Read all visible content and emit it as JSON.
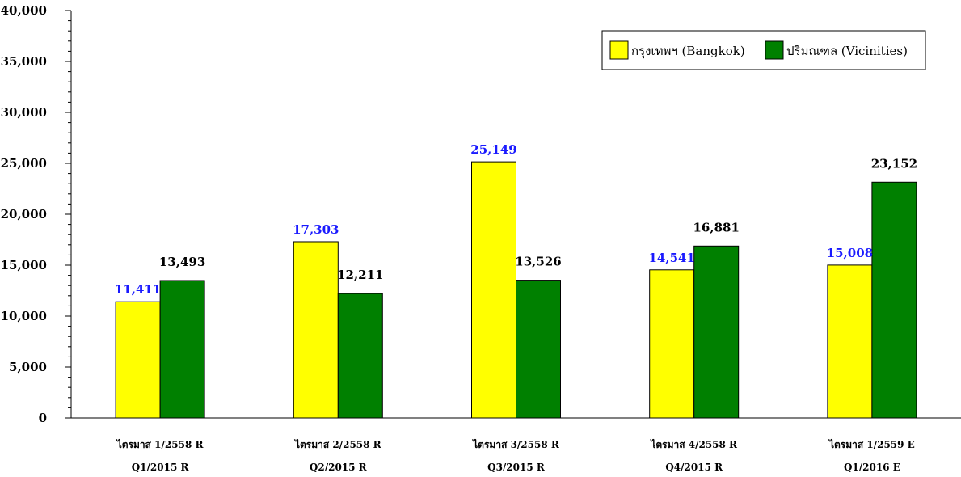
{
  "chart_data": {
    "type": "bar",
    "title": "",
    "xlabel": "",
    "ylabel": "",
    "ylim": [
      0,
      40000
    ],
    "yticks": [
      0,
      5000,
      10000,
      15000,
      20000,
      25000,
      30000,
      35000,
      40000
    ],
    "ytick_labels": [
      "0",
      "5,000",
      "10,000",
      "15,000",
      "20,000",
      "25,000",
      "30,000",
      "35,000",
      "40,000"
    ],
    "categories": [
      "ไตรมาส 1/2558 R",
      "ไตรมาส 2/2558 R",
      "ไตรมาส 3/2558 R",
      "ไตรมาส 4/2558 R",
      "ไตรมาส 1/2559 E"
    ],
    "categories_en": [
      "Q1/2015 R",
      "Q2/2015 R",
      "Q3/2015 R",
      "Q4/2015 R",
      "Q1/2016 E"
    ],
    "legend_position": "top-right",
    "grid": false,
    "series": [
      {
        "name": "กรุงเทพฯ (Bangkok)",
        "color": "#ffff00",
        "label_color": "#1a1aff",
        "values": [
          11411,
          17303,
          25149,
          14541,
          15008
        ],
        "labels": [
          "11,411",
          "17,303",
          "25,149",
          "14,541",
          "15,008"
        ]
      },
      {
        "name": "ปริมณฑล (Vicinities)",
        "color": "#008000",
        "label_color": "#000000",
        "values": [
          13493,
          12211,
          13526,
          16881,
          23152
        ],
        "labels": [
          "13,493",
          "12,211",
          "13,526",
          "16,881",
          "23,152"
        ]
      }
    ]
  }
}
